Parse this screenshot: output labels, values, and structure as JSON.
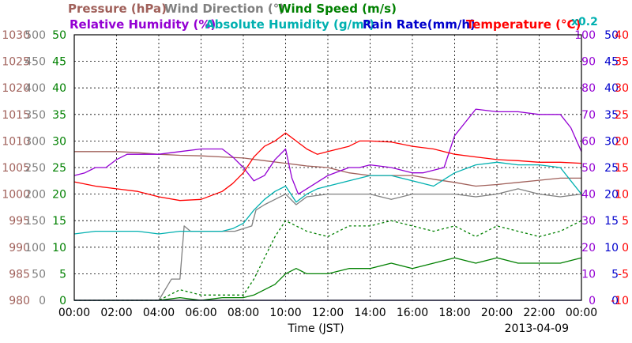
{
  "chart_data": {
    "type": "line",
    "date_label": "2013-04-09",
    "xlabel": "Time (JST)",
    "x_ticks": [
      "00:00",
      "02:00",
      "04:00",
      "06:00",
      "08:00",
      "10:00",
      "12:00",
      "14:00",
      "16:00",
      "18:00",
      "20:00",
      "22:00",
      "00:00"
    ],
    "legend_row1": [
      {
        "key": "pressure",
        "text": "Pressure (hPa)",
        "color": "#a0605a"
      },
      {
        "key": "wind_dir",
        "text": "Wind Direction (°)",
        "color": "#808080"
      },
      {
        "key": "wind_speed",
        "text": "Wind Speed (m/s)",
        "color": "#008000"
      }
    ],
    "legend_row2": [
      {
        "key": "rh",
        "text": "Relative Humidity (%)",
        "color": "#9400d3"
      },
      {
        "key": "ah",
        "text": "Absolute Humidity (g/m³)",
        "color": "#00b0b0"
      },
      {
        "key": "rain",
        "text": "Rain Rate(mm/h)",
        "color": "#0000cc"
      },
      {
        "key": "temp",
        "text": "Temperature (°C)",
        "color": "#ff0000"
      }
    ],
    "ah_scale_note": "x0.2",
    "axes": {
      "pressure": {
        "ticks": [
          "980",
          "985",
          "990",
          "995",
          "1000",
          "1005",
          "1010",
          "1015",
          "1020",
          "1025",
          "1030"
        ],
        "range": [
          980,
          1030
        ],
        "color": "#a0605a"
      },
      "wind_dir": {
        "ticks": [
          "0",
          "50",
          "100",
          "150",
          "200",
          "250",
          "300",
          "350",
          "400",
          "450",
          "500"
        ],
        "range": [
          0,
          500
        ],
        "color": "#808080"
      },
      "wind_speed": {
        "ticks": [
          "0",
          "5",
          "10",
          "15",
          "20",
          "25",
          "30",
          "35",
          "40",
          "45",
          "50"
        ],
        "range": [
          0,
          50
        ],
        "color": "#008000"
      },
      "rh": {
        "ticks": [
          "0",
          "10",
          "20",
          "30",
          "40",
          "50",
          "60",
          "70",
          "80",
          "90",
          "100"
        ],
        "range": [
          0,
          100
        ],
        "color": "#9400d3"
      },
      "rain": {
        "ticks": [
          "0",
          "5",
          "10",
          "15",
          "20",
          "25",
          "30",
          "35",
          "40",
          "45",
          "50"
        ],
        "range": [
          0,
          50
        ],
        "color": "#0000cc"
      },
      "temp": {
        "ticks": [
          "-10",
          "-5",
          "0",
          "5",
          "10",
          "15",
          "20",
          "25",
          "30",
          "35",
          "40"
        ],
        "range": [
          -10,
          40
        ],
        "color": "#ff0000"
      }
    },
    "series": [
      {
        "key": "pressure",
        "name": "Pressure (hPa)",
        "color": "#a0605a",
        "x": [
          0,
          1,
          2,
          3,
          4,
          5,
          6,
          7,
          8,
          9,
          10,
          11,
          12,
          13,
          14,
          15,
          16,
          17,
          18,
          19,
          20,
          21,
          22,
          23,
          24
        ],
        "values": [
          1008,
          1008,
          1008,
          1007.8,
          1007.5,
          1007.3,
          1007.2,
          1007,
          1006.8,
          1006.3,
          1005.8,
          1005.3,
          1005,
          1004,
          1003.5,
          1003.5,
          1003.5,
          1002.8,
          1002.2,
          1001.5,
          1001.8,
          1002.2,
          1002.6,
          1003,
          1003
        ]
      },
      {
        "key": "wind_dir",
        "name": "Wind Direction (°)",
        "color": "#808080",
        "x": [
          0,
          4,
          4.3,
          4.6,
          5.0,
          5.2,
          5.5,
          7.6,
          8.4,
          8.6,
          9,
          9.5,
          10,
          10.5,
          11,
          12,
          13,
          14,
          15,
          16,
          17,
          18,
          19,
          20,
          21,
          22,
          23,
          24
        ],
        "values": [
          0,
          0,
          20,
          40,
          40,
          140,
          130,
          130,
          140,
          170,
          180,
          190,
          200,
          180,
          195,
          200,
          200,
          200,
          190,
          200,
          200,
          200,
          195,
          200,
          210,
          200,
          195,
          200
        ]
      },
      {
        "key": "wind_speed",
        "name": "Wind Speed (m/s)",
        "color": "#008000",
        "x": [
          0,
          4,
          5,
          6,
          7,
          8,
          8.5,
          9,
          9.5,
          10,
          10.5,
          11,
          12,
          13,
          14,
          15,
          16,
          17,
          18,
          19,
          20,
          21,
          22,
          23,
          24
        ],
        "values": [
          0,
          0,
          0.5,
          0,
          0.5,
          0.5,
          1,
          2,
          3,
          5,
          6,
          5,
          5,
          6,
          6,
          7,
          6,
          7,
          8,
          7,
          8,
          7,
          7,
          7,
          8
        ]
      },
      {
        "key": "wind_gust",
        "name": "",
        "dashed": true,
        "color": "#008000",
        "x": [
          0,
          4,
          5,
          6,
          7,
          8,
          8.5,
          9,
          9.5,
          10,
          10.5,
          11,
          12,
          13,
          14,
          15,
          16,
          17,
          18,
          19,
          20,
          21,
          22,
          23,
          24
        ],
        "values": [
          0,
          0,
          2,
          1,
          1,
          1,
          4,
          8,
          12,
          15,
          14,
          13,
          12,
          14,
          14,
          15,
          14,
          13,
          14,
          12,
          14,
          13,
          12,
          13,
          15
        ]
      },
      {
        "key": "rh",
        "name": "Relative Humidity (%)",
        "color": "#9400d3",
        "x": [
          0,
          0.5,
          1,
          1.5,
          2,
          2.5,
          3,
          4,
          5,
          6,
          7,
          7.5,
          8,
          8.5,
          9,
          9.5,
          10,
          10.3,
          10.6,
          11,
          12,
          13,
          13.5,
          14,
          15,
          15.5,
          16,
          16.5,
          17,
          17.5,
          18,
          18.5,
          19,
          20,
          21,
          22,
          22.5,
          23,
          23.5,
          24
        ],
        "values": [
          47,
          48,
          50,
          50,
          53,
          55,
          55,
          55,
          56,
          57,
          57,
          54,
          50,
          45,
          47,
          53,
          57,
          46,
          40,
          42,
          47,
          50,
          50,
          51,
          50,
          49,
          48,
          48,
          49,
          50,
          62,
          67,
          72,
          71,
          71,
          70,
          70,
          70,
          65,
          56
        ]
      },
      {
        "key": "ah",
        "name": "Absolute Humidity (g/m³)",
        "color": "#00b0b0",
        "x": [
          0,
          1,
          2,
          3,
          4,
          5,
          6,
          7,
          7.5,
          8,
          8.5,
          9,
          9.5,
          10,
          10.5,
          11,
          11.5,
          12,
          13,
          14,
          15,
          16,
          17,
          18,
          19,
          20,
          21,
          22,
          23,
          23.5,
          24
        ],
        "values": [
          25,
          26,
          26,
          26,
          25,
          26,
          26,
          26,
          27,
          29,
          34,
          38,
          41,
          43,
          37,
          40,
          42,
          43,
          45,
          47,
          47,
          45,
          43,
          48,
          51,
          52,
          51,
          51,
          50,
          45,
          40
        ]
      },
      {
        "key": "rain",
        "name": "Rain Rate(mm/h)",
        "color": "#0000cc",
        "x": [
          0,
          24
        ],
        "values": [
          0,
          0
        ]
      },
      {
        "key": "temp",
        "name": "Temperature (°C)",
        "color": "#ff0000",
        "x": [
          0,
          1,
          2,
          3,
          4,
          5,
          6,
          7,
          7.5,
          8,
          8.5,
          9,
          9.5,
          10,
          10.5,
          11,
          11.5,
          12,
          13,
          13.5,
          14,
          15,
          16,
          17,
          18,
          19,
          20,
          21,
          22,
          23,
          24
        ],
        "values": [
          12.3,
          11.5,
          11,
          10.5,
          9.5,
          8.8,
          9,
          10.5,
          12,
          14,
          17,
          19,
          20,
          21.5,
          20,
          18.5,
          17.5,
          18,
          19,
          20,
          20,
          19.8,
          19,
          18.5,
          17.5,
          17,
          16.5,
          16.3,
          16,
          16,
          15.8
        ]
      }
    ]
  }
}
